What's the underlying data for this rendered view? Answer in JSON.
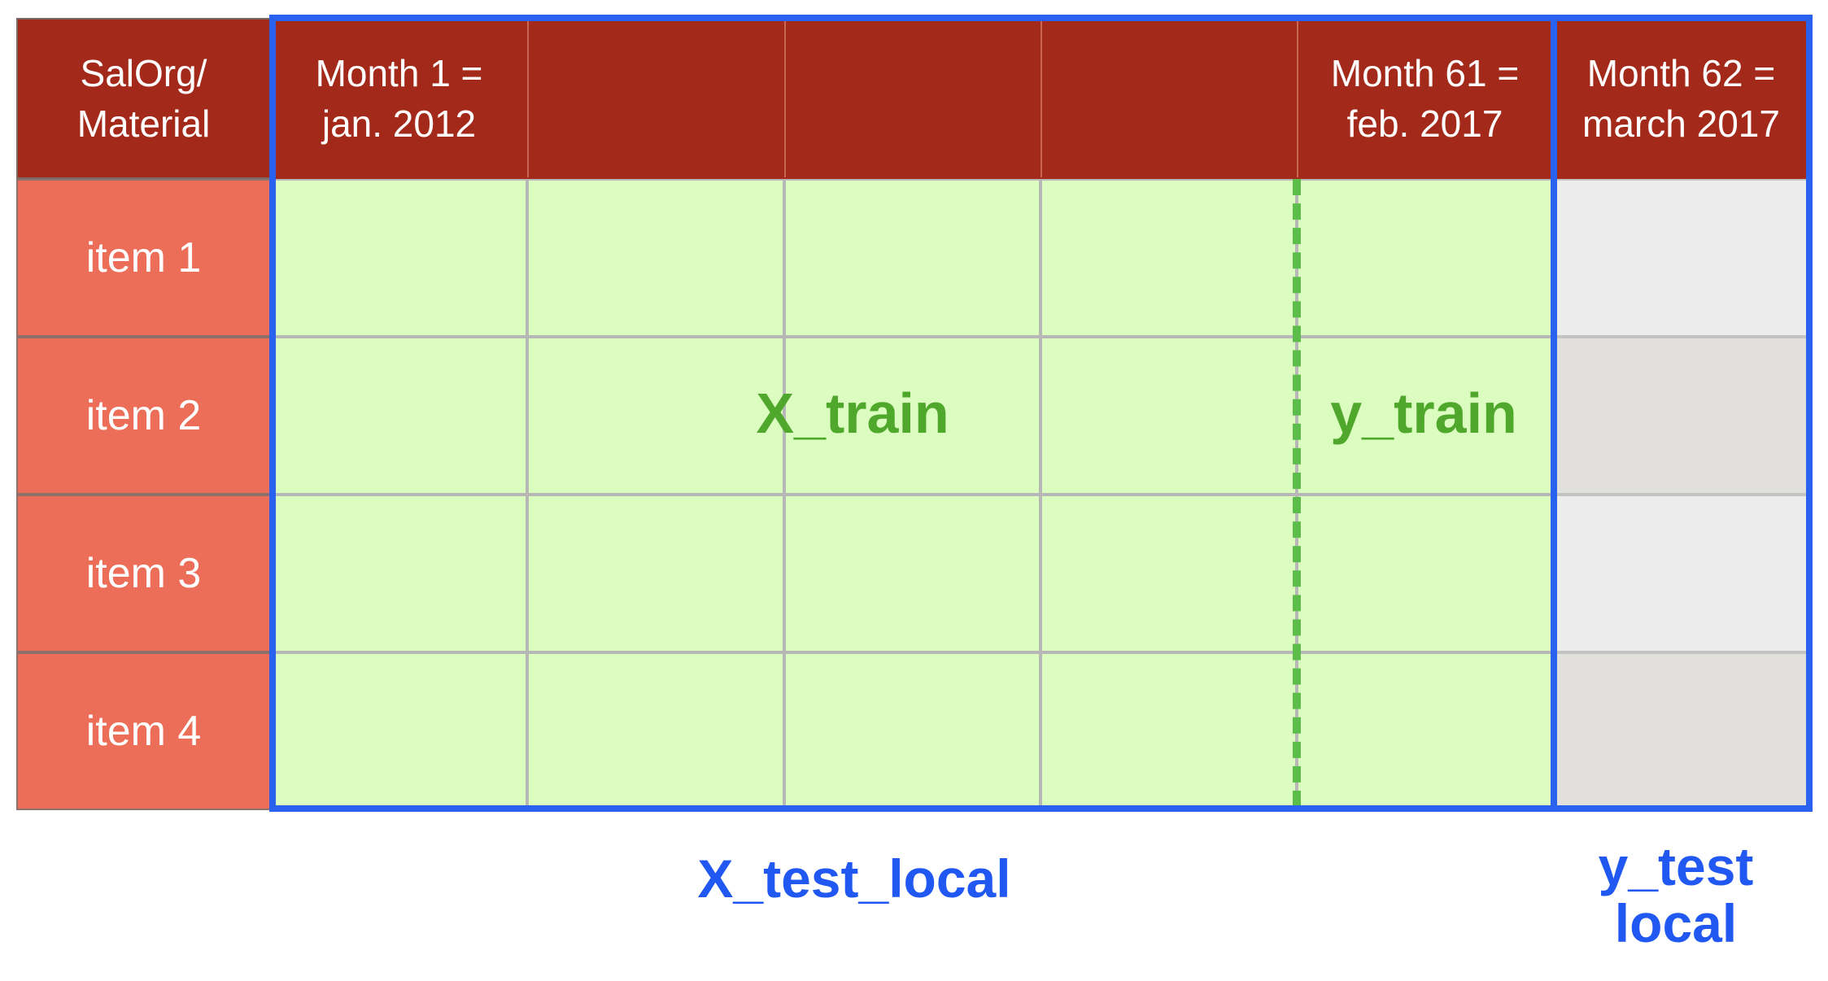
{
  "header": {
    "corner_lines": [
      "SalOrg/",
      "Material"
    ],
    "month_first_lines": [
      "Month 1 =",
      "jan. 2012"
    ],
    "month_61_lines": [
      "Month 61 =",
      "feb. 2017"
    ],
    "month_62_lines": [
      "Month 62 =",
      "march 2017"
    ]
  },
  "rows": [
    "item 1",
    "item 2",
    "item 3",
    "item 4"
  ],
  "labels": {
    "x_train": "X_train",
    "y_train": "y_train",
    "x_test_local": "X_test_local",
    "y_test_local_lines": [
      "y_test",
      "local"
    ]
  },
  "colors": {
    "header_bg": "#a32a1a",
    "row_label_bg": "#ec6e58",
    "train_cell_bg": "#dbfdbf",
    "test_cell_bg": "#ececec",
    "frame_blue": "#2a62f0",
    "train_label_green": "#4fa72c",
    "test_label_blue": "#2158f2"
  }
}
